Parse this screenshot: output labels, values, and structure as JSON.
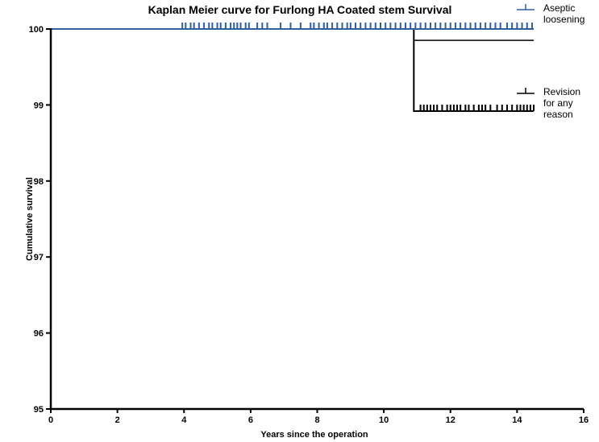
{
  "chart_data": {
    "type": "line",
    "title": "Kaplan Meier curve for Furlong HA Coated stem Survival",
    "xlabel": "Years since the operation",
    "ylabel": "Cumulative survival",
    "xlim": [
      0,
      16
    ],
    "ylim": [
      95,
      100
    ],
    "xticks": [
      "0",
      "2",
      "4",
      "6",
      "8",
      "10",
      "12",
      "14",
      "16"
    ],
    "yticks": [
      "95",
      "96",
      "97",
      "98",
      "99",
      "100"
    ],
    "grid": false,
    "legend_position": "top-right",
    "series": [
      {
        "name": "Aseptic loosening",
        "color": "#2f5f9e",
        "steps": [
          [
            0,
            100
          ],
          [
            14.5,
            100
          ]
        ],
        "censor_times": [
          3.95,
          4.05,
          4.2,
          4.3,
          4.45,
          4.6,
          4.75,
          4.85,
          5.0,
          5.1,
          5.25,
          5.4,
          5.5,
          5.6,
          5.7,
          5.85,
          5.95,
          6.2,
          6.35,
          6.5,
          6.9,
          7.2,
          7.5,
          7.8,
          7.9,
          8.05,
          8.2,
          8.3,
          8.45,
          8.6,
          8.75,
          8.9,
          9.0,
          9.15,
          9.3,
          9.45,
          9.6,
          9.75,
          9.9,
          10.05,
          10.2,
          10.35,
          10.5,
          10.65,
          10.8,
          10.95,
          11.1,
          11.25,
          11.4,
          11.55,
          11.7,
          11.85,
          12.0,
          12.15,
          12.3,
          12.45,
          12.6,
          12.75,
          12.9,
          13.05,
          13.2,
          13.35,
          13.5,
          13.7,
          13.85,
          14.0,
          14.15,
          14.3,
          14.45
        ]
      },
      {
        "name": "Revision for any reason",
        "color": "#000000",
        "steps": [
          [
            0,
            100
          ],
          [
            10.9,
            100
          ],
          [
            10.9,
            98.92
          ],
          [
            14.5,
            98.92
          ]
        ],
        "secondary_level": [
          [
            10.9,
            99.85
          ],
          [
            14.5,
            99.85
          ]
        ],
        "censor_times": [
          11.1,
          11.2,
          11.3,
          11.4,
          11.5,
          11.6,
          11.75,
          11.9,
          12.0,
          12.1,
          12.2,
          12.3,
          12.45,
          12.55,
          12.7,
          12.85,
          12.95,
          13.05,
          13.2,
          13.4,
          13.55,
          13.7,
          13.85,
          14.0,
          14.1,
          14.2,
          14.3,
          14.4,
          14.5
        ]
      }
    ]
  }
}
